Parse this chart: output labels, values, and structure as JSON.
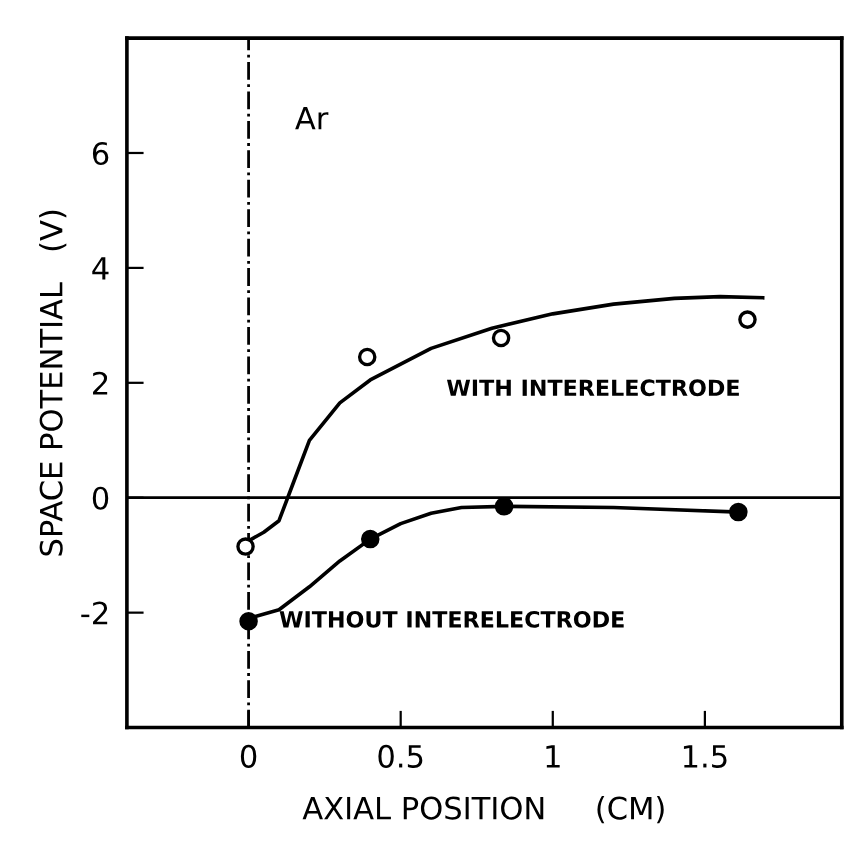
{
  "chart_data": {
    "type": "scatter",
    "xlabel": "AXIAL POSITION     (CM)",
    "ylabel": "SPACE POTENTIAL   (V)",
    "xlim": [
      -0.4,
      1.95
    ],
    "ylim": [
      -4,
      8
    ],
    "xticks": [
      0,
      0.5,
      1,
      1.5
    ],
    "yticks": [
      -2,
      0,
      2,
      4,
      6
    ],
    "grid": false,
    "legend": false,
    "series": [
      {
        "name": "WITH INTERELECTRODE",
        "color": "#000000",
        "marker": "circle",
        "x": [
          -0.01,
          0.39,
          0.83,
          1.64
        ],
        "values": [
          -0.85,
          2.45,
          2.78,
          3.1
        ]
      },
      {
        "name": "WITHOUT INTERELECTRODE",
        "color": "#000000",
        "marker": "circle",
        "x": [
          0.0,
          0.4,
          0.84,
          1.61
        ],
        "values": [
          -2.15,
          -0.72,
          -0.15,
          -0.25
        ]
      },
      {
        "type": "line",
        "color": "#000000",
        "marker": "none",
        "line_style": "solid",
        "x": [
          0,
          0.05,
          0.1,
          0.15,
          0.2,
          0.3,
          0.4,
          0.6,
          0.8,
          1.0,
          1.2,
          1.4,
          1.55,
          1.69
        ],
        "values": [
          -0.75,
          -0.6,
          -0.4,
          0.3,
          1.0,
          1.65,
          2.05,
          2.6,
          2.95,
          3.2,
          3.37,
          3.47,
          3.5,
          3.48
        ]
      },
      {
        "type": "line",
        "color": "#000000",
        "marker": "none",
        "line_style": "solid",
        "x": [
          0,
          0.1,
          0.2,
          0.3,
          0.4,
          0.5,
          0.6,
          0.7,
          0.84,
          1.2,
          1.61
        ],
        "values": [
          -2.1,
          -1.95,
          -1.55,
          -1.1,
          -0.72,
          -0.45,
          -0.27,
          -0.17,
          -0.15,
          -0.17,
          -0.25
        ]
      }
    ],
    "ref_lines": [
      {
        "axis": "x",
        "value": 0,
        "line_style": "dashdot",
        "color": "#000000"
      },
      {
        "axis": "y",
        "value": 0,
        "line_style": "solid",
        "color": "#000000"
      }
    ],
    "annotations": [
      "Ar"
    ]
  }
}
